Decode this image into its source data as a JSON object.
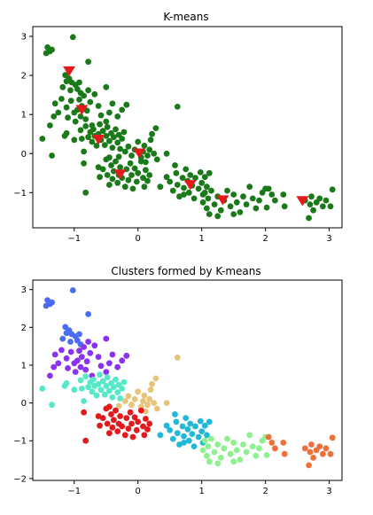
{
  "chart_data": [
    {
      "type": "scatter",
      "title": "K-means",
      "xlabel": "",
      "ylabel": "",
      "xlim": [
        -1.65,
        3.2
      ],
      "ylim": [
        -1.9,
        3.25
      ],
      "xticks": [
        -1,
        0,
        1,
        2,
        3
      ],
      "yticks": [
        -1,
        0,
        1,
        2,
        3
      ],
      "grid": false,
      "point_color": "#1a7a1a",
      "centroid_color": "#e31a1c",
      "centroid_marker": "triangle-down",
      "centroids": [
        {
          "x": -1.08,
          "y": 2.12
        },
        {
          "x": -0.88,
          "y": 1.13
        },
        {
          "x": -0.62,
          "y": 0.37
        },
        {
          "x": -0.28,
          "y": -0.52
        },
        {
          "x": 0.02,
          "y": 0.02
        },
        {
          "x": 0.82,
          "y": -0.79
        },
        {
          "x": 1.33,
          "y": -1.18
        },
        {
          "x": 2.58,
          "y": -1.2
        }
      ]
    },
    {
      "type": "scatter",
      "title": "Clusters formed by K-means",
      "xlabel": "",
      "ylabel": "",
      "xlim": [
        -1.65,
        3.2
      ],
      "ylim": [
        -2.05,
        3.25
      ],
      "xticks": [
        -1,
        0,
        1,
        2,
        3
      ],
      "yticks": [
        -2,
        -1,
        0,
        1,
        2,
        3
      ],
      "grid": false,
      "colormap": "rainbow"
    }
  ],
  "clusters": [
    {
      "color": "#4a6cf0",
      "points": [
        [
          -1.42,
          2.72
        ],
        [
          -1.44,
          2.57
        ],
        [
          -1.35,
          2.66
        ],
        [
          -1.38,
          2.62
        ],
        [
          -1.02,
          2.98
        ],
        [
          -1.14,
          2.01
        ],
        [
          -1.08,
          1.92
        ],
        [
          -1.12,
          1.85
        ],
        [
          -1.04,
          1.82
        ],
        [
          -1.18,
          1.7
        ],
        [
          -0.98,
          1.76
        ],
        [
          -0.95,
          1.65
        ],
        [
          -0.78,
          2.35
        ],
        [
          -0.92,
          1.82
        ],
        [
          -1.06,
          1.62
        ],
        [
          -0.9,
          1.55
        ]
      ]
    },
    {
      "color": "#8a32f0",
      "points": [
        [
          -1.38,
          0.72
        ],
        [
          -1.32,
          0.95
        ],
        [
          -1.3,
          1.28
        ],
        [
          -1.25,
          1.05
        ],
        [
          -1.2,
          1.4
        ],
        [
          -1.12,
          1.18
        ],
        [
          -1.1,
          0.92
        ],
        [
          -1.05,
          1.35
        ],
        [
          -1.0,
          1.05
        ],
        [
          -0.98,
          0.82
        ],
        [
          -0.95,
          1.12
        ],
        [
          -0.92,
          1.38
        ],
        [
          -0.9,
          0.95
        ],
        [
          -0.88,
          1.22
        ],
        [
          -0.85,
          1.48
        ],
        [
          -0.82,
          0.88
        ],
        [
          -0.8,
          1.1
        ],
        [
          -0.78,
          1.62
        ],
        [
          -0.75,
          1.32
        ],
        [
          -0.72,
          0.72
        ],
        [
          -0.68,
          1.52
        ],
        [
          -0.62,
          1.22
        ],
        [
          -0.58,
          0.98
        ],
        [
          -0.5,
          0.82
        ],
        [
          -0.45,
          1.05
        ],
        [
          -0.4,
          1.28
        ],
        [
          -0.32,
          0.95
        ],
        [
          -0.25,
          1.12
        ],
        [
          -0.5,
          1.7
        ],
        [
          -0.18,
          1.25
        ]
      ]
    },
    {
      "color": "#56e8c8",
      "points": [
        [
          -1.5,
          0.38
        ],
        [
          -1.35,
          -0.05
        ],
        [
          -1.15,
          0.45
        ],
        [
          -1.12,
          0.52
        ],
        [
          -1.0,
          0.35
        ],
        [
          -0.9,
          0.6
        ],
        [
          -0.88,
          0.38
        ],
        [
          -0.82,
          0.7
        ],
        [
          -0.78,
          0.42
        ],
        [
          -0.75,
          0.55
        ],
        [
          -0.72,
          0.3
        ],
        [
          -0.7,
          0.62
        ],
        [
          -0.68,
          0.45
        ],
        [
          -0.65,
          0.2
        ],
        [
          -0.62,
          0.5
        ],
        [
          -0.6,
          0.75
        ],
        [
          -0.58,
          0.35
        ],
        [
          -0.55,
          0.58
        ],
        [
          -0.52,
          0.22
        ],
        [
          -0.5,
          0.45
        ],
        [
          -0.48,
          0.68
        ],
        [
          -0.45,
          0.32
        ],
        [
          -0.42,
          0.52
        ],
        [
          -0.4,
          0.15
        ],
        [
          -0.38,
          0.42
        ],
        [
          -0.35,
          0.62
        ],
        [
          -0.32,
          0.28
        ],
        [
          -0.3,
          0.48
        ],
        [
          -0.28,
          0.12
        ],
        [
          -0.25,
          0.38
        ],
        [
          -0.22,
          0.55
        ],
        [
          -0.85,
          0.05
        ]
      ]
    },
    {
      "color": "#e6c47a",
      "points": [
        [
          -0.2,
          0.05
        ],
        [
          -0.15,
          0.18
        ],
        [
          -0.1,
          -0.05
        ],
        [
          -0.05,
          0.1
        ],
        [
          0.0,
          0.3
        ],
        [
          0.05,
          -0.1
        ],
        [
          0.08,
          0.05
        ],
        [
          0.1,
          0.2
        ],
        [
          0.15,
          -0.05
        ],
        [
          0.2,
          0.35
        ],
        [
          0.22,
          0.5
        ],
        [
          0.25,
          0.0
        ],
        [
          0.18,
          0.1
        ],
        [
          0.28,
          0.65
        ],
        [
          0.3,
          -0.15
        ],
        [
          0.45,
          0.0
        ],
        [
          0.62,
          1.2
        ],
        [
          0.12,
          -0.22
        ],
        [
          -0.3,
          -0.08
        ]
      ]
    },
    {
      "color": "#e31a1c",
      "points": [
        [
          -0.82,
          -1.0
        ],
        [
          -0.85,
          -0.25
        ],
        [
          -0.6,
          -0.6
        ],
        [
          -0.55,
          -0.4
        ],
        [
          -0.5,
          -0.15
        ],
        [
          -0.48,
          -0.55
        ],
        [
          -0.45,
          -0.8
        ],
        [
          -0.42,
          -0.3
        ],
        [
          -0.4,
          -0.65
        ],
        [
          -0.38,
          -0.45
        ],
        [
          -0.35,
          -0.2
        ],
        [
          -0.32,
          -0.75
        ],
        [
          -0.3,
          -0.55
        ],
        [
          -0.28,
          -0.35
        ],
        [
          -0.25,
          -0.62
        ],
        [
          -0.2,
          -0.85
        ],
        [
          -0.18,
          -0.4
        ],
        [
          -0.15,
          -0.68
        ],
        [
          -0.12,
          -0.25
        ],
        [
          -0.1,
          -0.55
        ],
        [
          -0.08,
          -0.9
        ],
        [
          -0.05,
          -0.38
        ],
        [
          -0.02,
          -0.72
        ],
        [
          0.0,
          -0.5
        ],
        [
          0.05,
          -0.2
        ],
        [
          0.08,
          -0.62
        ],
        [
          0.1,
          -0.85
        ],
        [
          0.12,
          -0.42
        ],
        [
          0.15,
          -0.7
        ],
        [
          0.18,
          -0.55
        ],
        [
          -0.62,
          -0.35
        ],
        [
          -0.45,
          -0.1
        ]
      ]
    },
    {
      "color": "#22b8d8",
      "points": [
        [
          0.35,
          -0.85
        ],
        [
          0.45,
          -0.6
        ],
        [
          0.5,
          -0.72
        ],
        [
          0.55,
          -0.95
        ],
        [
          0.6,
          -0.5
        ],
        [
          0.62,
          -0.8
        ],
        [
          0.65,
          -1.1
        ],
        [
          0.7,
          -0.62
        ],
        [
          0.72,
          -0.88
        ],
        [
          0.75,
          -0.4
        ],
        [
          0.78,
          -0.7
        ],
        [
          0.8,
          -1.0
        ],
        [
          0.82,
          -0.55
        ],
        [
          0.85,
          -0.82
        ],
        [
          0.88,
          -1.15
        ],
        [
          0.9,
          -0.62
        ],
        [
          0.95,
          -0.9
        ],
        [
          0.98,
          -0.48
        ],
        [
          1.0,
          -0.75
        ],
        [
          1.02,
          -1.05
        ],
        [
          1.05,
          -0.6
        ],
        [
          1.08,
          -0.85
        ],
        [
          1.12,
          -0.5
        ],
        [
          0.72,
          -1.05
        ],
        [
          0.58,
          -0.3
        ]
      ]
    },
    {
      "color": "#8ef08e",
      "points": [
        [
          1.02,
          -1.25
        ],
        [
          1.05,
          -1.0
        ],
        [
          1.08,
          -1.4
        ],
        [
          1.1,
          -1.15
        ],
        [
          1.12,
          -1.55
        ],
        [
          1.15,
          -0.95
        ],
        [
          1.2,
          -1.3
        ],
        [
          1.25,
          -1.1
        ],
        [
          1.3,
          -1.45
        ],
        [
          1.35,
          -1.2
        ],
        [
          1.4,
          -0.95
        ],
        [
          1.45,
          -1.35
        ],
        [
          1.5,
          -1.05
        ],
        [
          1.55,
          -1.25
        ],
        [
          1.6,
          -1.5
        ],
        [
          1.65,
          -1.1
        ],
        [
          1.7,
          -1.3
        ],
        [
          1.75,
          -0.85
        ],
        [
          1.8,
          -1.15
        ],
        [
          1.85,
          -1.4
        ],
        [
          1.9,
          -1.2
        ],
        [
          1.95,
          -1.0
        ],
        [
          2.0,
          -0.9
        ],
        [
          2.02,
          -1.38
        ],
        [
          1.5,
          -1.55
        ],
        [
          1.25,
          -1.6
        ]
      ]
    },
    {
      "color": "#f0703a",
      "points": [
        [
          2.05,
          -0.9
        ],
        [
          2.1,
          -1.05
        ],
        [
          2.15,
          -1.2
        ],
        [
          2.28,
          -1.05
        ],
        [
          2.3,
          -1.35
        ],
        [
          2.62,
          -1.2
        ],
        [
          2.7,
          -1.3
        ],
        [
          2.72,
          -1.1
        ],
        [
          2.75,
          -1.45
        ],
        [
          2.8,
          -1.25
        ],
        [
          2.85,
          -1.15
        ],
        [
          2.9,
          -1.35
        ],
        [
          2.95,
          -1.2
        ],
        [
          3.02,
          -1.35
        ],
        [
          3.05,
          -0.92
        ],
        [
          2.68,
          -1.65
        ]
      ]
    }
  ]
}
